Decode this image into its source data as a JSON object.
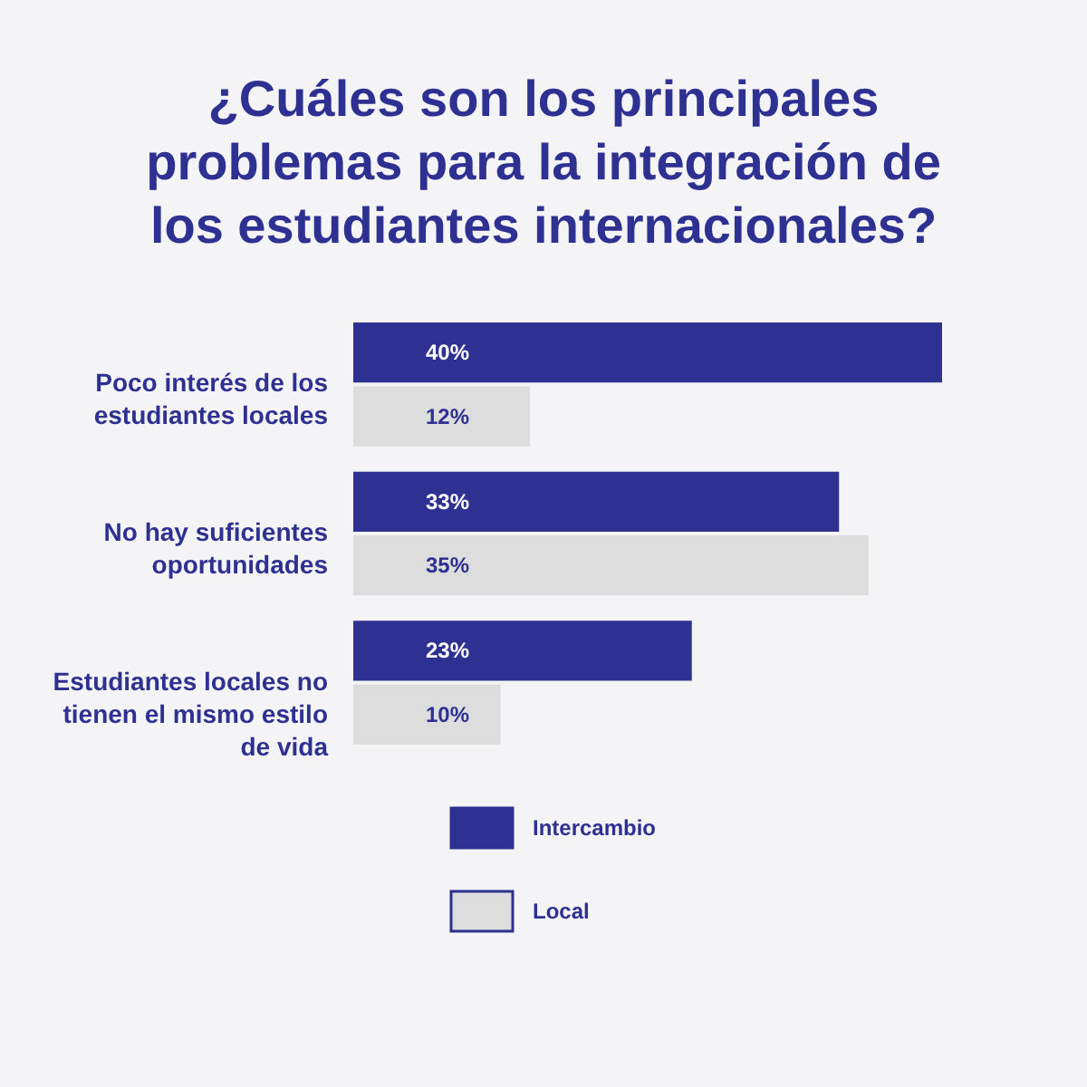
{
  "chart_data": {
    "type": "bar",
    "orientation": "horizontal",
    "title": "¿Cuáles son los principales problemas para la integración de los estudiantes internacionales?",
    "categories": [
      "Poco interés de los estudiantes locales",
      "No hay suficientes oportunidades",
      "Estudiantes locales no tienen el mismo estilo de vida"
    ],
    "series": [
      {
        "name": "Intercambio",
        "color": "#2e3192",
        "values": [
          40,
          33,
          23
        ],
        "value_labels": [
          "40%",
          "33%",
          "23%"
        ]
      },
      {
        "name": "Local",
        "color": "#dddddd",
        "values": [
          12,
          35,
          10
        ],
        "value_labels": [
          "12%",
          "35%",
          "10%"
        ]
      }
    ],
    "legend": "bottom"
  }
}
